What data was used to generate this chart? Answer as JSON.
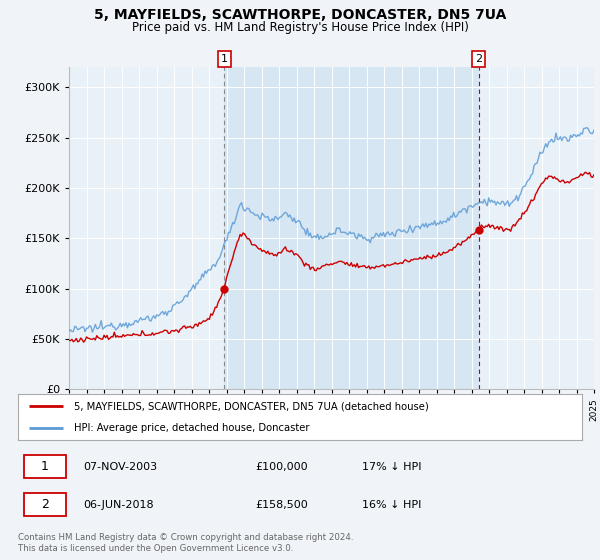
{
  "title": "5, MAYFIELDS, SCAWTHORPE, DONCASTER, DN5 7UA",
  "subtitle": "Price paid vs. HM Land Registry's House Price Index (HPI)",
  "background_color": "#f0f4f8",
  "plot_background": "#ffffff",
  "shade_color": "#ddeeff",
  "grid_color": "#cccccc",
  "legend_entries": [
    "5, MAYFIELDS, SCAWTHORPE, DONCASTER, DN5 7UA (detached house)",
    "HPI: Average price, detached house, Doncaster"
  ],
  "annotation1": [
    "1",
    "07-NOV-2003",
    "£100,000",
    "17% ↓ HPI"
  ],
  "annotation2": [
    "2",
    "06-JUN-2018",
    "£158,500",
    "16% ↓ HPI"
  ],
  "footer": "Contains HM Land Registry data © Crown copyright and database right 2024.\nThis data is licensed under the Open Government Licence v3.0.",
  "ylim": [
    0,
    320000
  ],
  "yticks": [
    0,
    50000,
    100000,
    150000,
    200000,
    250000,
    300000
  ],
  "year_start": 1995,
  "year_end": 2025,
  "sale1_year": 2003.875,
  "sale1_price": 100000,
  "sale2_year": 2018.417,
  "sale2_price": 158500,
  "hpi_color": "#5b9bd5",
  "red_color": "#cc0000",
  "dashed_gray": "#999999",
  "dashed_red": "#cc0000"
}
